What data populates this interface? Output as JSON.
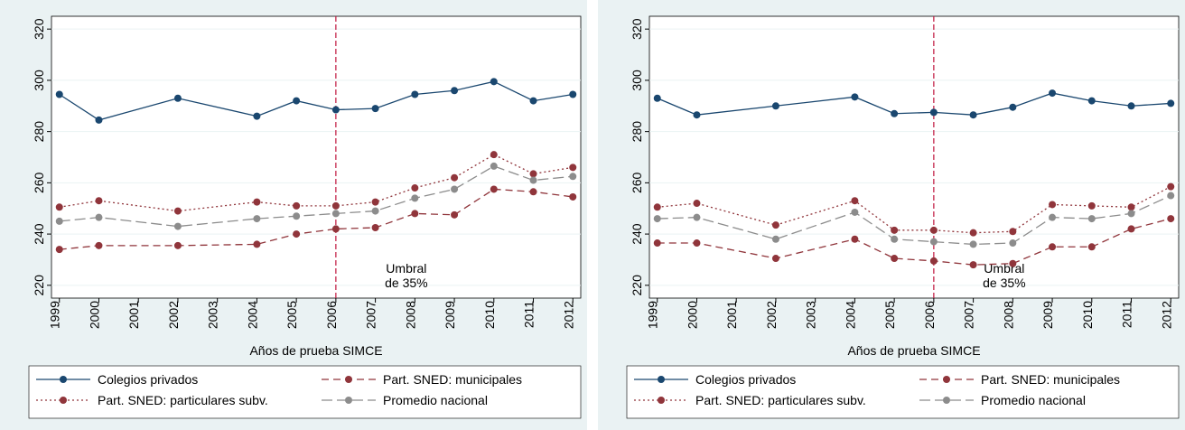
{
  "chart_data": [
    {
      "type": "line",
      "xlabel": "Años de prueba SIMCE",
      "vline": 2006,
      "annotation": [
        "Umbral",
        "de 35%"
      ],
      "x": [
        1999,
        2000,
        2002,
        2004,
        2005,
        2006,
        2007,
        2008,
        2009,
        2010,
        2011,
        2012
      ],
      "xlim": [
        1998.8,
        2012.2
      ],
      "xticks": [
        1999,
        2000,
        2001,
        2002,
        2003,
        2004,
        2005,
        2006,
        2007,
        2008,
        2009,
        2010,
        2011,
        2012
      ],
      "ylim": [
        215,
        325
      ],
      "yticks": [
        220,
        240,
        260,
        280,
        300,
        320
      ],
      "series": [
        {
          "name": "Colegios privados",
          "color": "#1a476f",
          "dash": "solid",
          "values": [
            294.5,
            284.5,
            293,
            286,
            292,
            288.5,
            289,
            294.5,
            296,
            299.5,
            292,
            294.5
          ]
        },
        {
          "name": "Part. SNED: municipales",
          "color": "#90353b",
          "dash": "dashed",
          "values": [
            234,
            235.5,
            235.5,
            236,
            240,
            242,
            242.5,
            248,
            247.5,
            257.5,
            256.5,
            254.5
          ]
        },
        {
          "name": "Part. SNED: particulares subv.",
          "color": "#90353b",
          "dash": "dotted",
          "values": [
            250.5,
            253,
            249,
            252.5,
            251,
            251,
            252.5,
            258,
            262,
            271,
            263.5,
            266
          ]
        },
        {
          "name": "Promedio nacional",
          "color": "#8c8c8c",
          "dash": "longdash",
          "values": [
            245,
            246.5,
            243,
            246,
            247,
            248,
            249,
            254,
            257.5,
            266.5,
            261,
            262.5
          ]
        }
      ]
    },
    {
      "type": "line",
      "xlabel": "Años de prueba SIMCE",
      "vline": 2006,
      "annotation": [
        "Umbral",
        "de 35%"
      ],
      "x": [
        1999,
        2000,
        2002,
        2004,
        2005,
        2006,
        2007,
        2008,
        2009,
        2010,
        2011,
        2012
      ],
      "xlim": [
        1998.8,
        2012.2
      ],
      "xticks": [
        1999,
        2000,
        2001,
        2002,
        2003,
        2004,
        2005,
        2006,
        2007,
        2008,
        2009,
        2010,
        2011,
        2012
      ],
      "ylim": [
        215,
        325
      ],
      "yticks": [
        220,
        240,
        260,
        280,
        300,
        320
      ],
      "series": [
        {
          "name": "Colegios privados",
          "color": "#1a476f",
          "dash": "solid",
          "values": [
            293,
            286.5,
            290,
            293.5,
            287,
            287.5,
            286.5,
            289.5,
            295,
            292,
            290,
            291
          ]
        },
        {
          "name": "Part. SNED: municipales",
          "color": "#90353b",
          "dash": "dashed",
          "values": [
            236.5,
            236.5,
            230.5,
            238,
            230.5,
            229.5,
            228,
            228.5,
            235,
            235,
            242,
            246
          ]
        },
        {
          "name": "Part. SNED: particulares subv.",
          "color": "#90353b",
          "dash": "dotted",
          "values": [
            250.5,
            252,
            243.5,
            253,
            241.5,
            241.5,
            240.5,
            241,
            251.5,
            251,
            250.5,
            258.5
          ]
        },
        {
          "name": "Promedio nacional",
          "color": "#8c8c8c",
          "dash": "longdash",
          "values": [
            246,
            246.5,
            238,
            248.5,
            238,
            237,
            236,
            236.5,
            246.5,
            246,
            248,
            255
          ]
        }
      ]
    }
  ]
}
